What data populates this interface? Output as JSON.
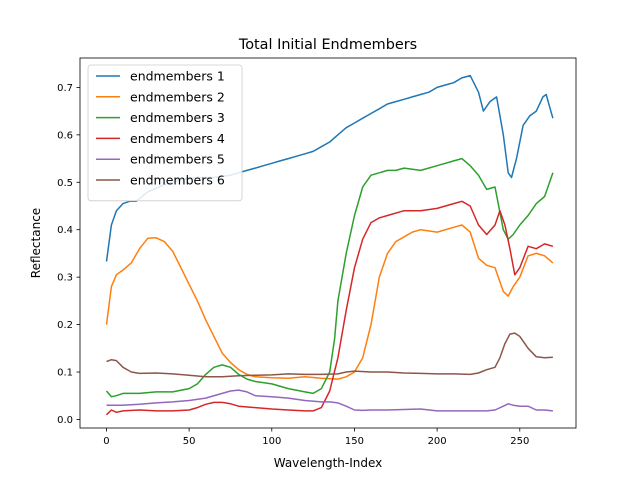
{
  "chart_data": {
    "type": "line",
    "title": "Total Initial Endmembers",
    "xlabel": "Wavelength-Index",
    "ylabel": "Reflectance",
    "xlim": [
      -16,
      284
    ],
    "ylim": [
      -0.018,
      0.762
    ],
    "xticks": [
      0,
      50,
      100,
      150,
      200,
      250
    ],
    "yticks": [
      0.0,
      0.1,
      0.2,
      0.3,
      0.4,
      0.5,
      0.6,
      0.7
    ],
    "ytick_labels": [
      "0.0",
      "0.1",
      "0.2",
      "0.3",
      "0.4",
      "0.5",
      "0.6",
      "0.7"
    ],
    "grid": false,
    "legend_position": "upper-left",
    "series": [
      {
        "name": "endmembers 1",
        "color": "#1f77b4",
        "x": [
          0,
          3,
          6,
          10,
          14,
          18,
          25,
          35,
          45,
          55,
          65,
          75,
          80,
          85,
          90,
          95,
          100,
          105,
          110,
          115,
          120,
          125,
          130,
          135,
          140,
          145,
          150,
          155,
          160,
          165,
          170,
          175,
          180,
          185,
          190,
          195,
          200,
          205,
          210,
          215,
          220,
          225,
          228,
          232,
          236,
          240,
          243,
          245,
          248,
          252,
          256,
          260,
          264,
          266,
          268,
          270
        ],
        "y": [
          0.333,
          0.41,
          0.44,
          0.455,
          0.46,
          0.46,
          0.48,
          0.495,
          0.505,
          0.51,
          0.51,
          0.515,
          0.52,
          0.525,
          0.53,
          0.535,
          0.54,
          0.545,
          0.55,
          0.555,
          0.56,
          0.565,
          0.575,
          0.585,
          0.6,
          0.615,
          0.625,
          0.635,
          0.645,
          0.655,
          0.665,
          0.67,
          0.675,
          0.68,
          0.685,
          0.69,
          0.7,
          0.705,
          0.71,
          0.72,
          0.725,
          0.69,
          0.65,
          0.67,
          0.68,
          0.6,
          0.52,
          0.51,
          0.55,
          0.62,
          0.64,
          0.65,
          0.68,
          0.685,
          0.66,
          0.635
        ]
      },
      {
        "name": "endmembers 2",
        "color": "#ff7f0e",
        "x": [
          0,
          3,
          6,
          10,
          15,
          20,
          25,
          30,
          35,
          40,
          45,
          50,
          55,
          60,
          65,
          70,
          75,
          80,
          85,
          90,
          100,
          110,
          120,
          130,
          140,
          145,
          150,
          155,
          160,
          165,
          170,
          175,
          180,
          185,
          190,
          200,
          210,
          215,
          220,
          225,
          230,
          235,
          240,
          243,
          246,
          250,
          255,
          260,
          265,
          270
        ],
        "y": [
          0.2,
          0.28,
          0.305,
          0.315,
          0.33,
          0.36,
          0.382,
          0.383,
          0.375,
          0.355,
          0.32,
          0.285,
          0.25,
          0.21,
          0.175,
          0.14,
          0.12,
          0.105,
          0.095,
          0.09,
          0.088,
          0.087,
          0.09,
          0.087,
          0.085,
          0.09,
          0.1,
          0.13,
          0.2,
          0.3,
          0.35,
          0.375,
          0.385,
          0.395,
          0.4,
          0.395,
          0.405,
          0.41,
          0.395,
          0.34,
          0.325,
          0.32,
          0.27,
          0.26,
          0.28,
          0.3,
          0.345,
          0.35,
          0.345,
          0.33
        ]
      },
      {
        "name": "endmembers 3",
        "color": "#2ca02c",
        "x": [
          0,
          3,
          6,
          10,
          20,
          30,
          40,
          50,
          55,
          60,
          65,
          70,
          75,
          80,
          85,
          90,
          100,
          110,
          120,
          125,
          130,
          135,
          138,
          140,
          145,
          150,
          155,
          160,
          165,
          170,
          175,
          180,
          190,
          200,
          210,
          215,
          220,
          225,
          230,
          235,
          240,
          243,
          246,
          250,
          255,
          260,
          265,
          270
        ],
        "y": [
          0.06,
          0.048,
          0.05,
          0.055,
          0.055,
          0.058,
          0.058,
          0.065,
          0.075,
          0.095,
          0.11,
          0.115,
          0.11,
          0.095,
          0.085,
          0.08,
          0.075,
          0.065,
          0.058,
          0.055,
          0.065,
          0.1,
          0.17,
          0.25,
          0.35,
          0.43,
          0.49,
          0.515,
          0.52,
          0.525,
          0.525,
          0.53,
          0.525,
          0.535,
          0.545,
          0.55,
          0.535,
          0.515,
          0.485,
          0.49,
          0.4,
          0.38,
          0.39,
          0.41,
          0.43,
          0.455,
          0.47,
          0.52
        ]
      },
      {
        "name": "endmembers 4",
        "color": "#d62728",
        "x": [
          0,
          3,
          6,
          10,
          20,
          30,
          40,
          50,
          55,
          60,
          65,
          70,
          75,
          80,
          90,
          100,
          110,
          120,
          125,
          130,
          135,
          140,
          145,
          150,
          155,
          160,
          165,
          170,
          180,
          190,
          200,
          210,
          215,
          220,
          225,
          230,
          235,
          238,
          241,
          244,
          247,
          250,
          255,
          260,
          265,
          270
        ],
        "y": [
          0.01,
          0.02,
          0.015,
          0.018,
          0.02,
          0.018,
          0.018,
          0.02,
          0.025,
          0.032,
          0.036,
          0.036,
          0.033,
          0.028,
          0.025,
          0.022,
          0.02,
          0.018,
          0.018,
          0.025,
          0.06,
          0.13,
          0.23,
          0.32,
          0.38,
          0.415,
          0.425,
          0.43,
          0.44,
          0.44,
          0.445,
          0.455,
          0.46,
          0.45,
          0.41,
          0.39,
          0.41,
          0.44,
          0.41,
          0.36,
          0.305,
          0.32,
          0.365,
          0.36,
          0.37,
          0.365
        ]
      },
      {
        "name": "endmembers 5",
        "color": "#9467bd",
        "x": [
          0,
          10,
          20,
          30,
          40,
          50,
          60,
          70,
          75,
          80,
          85,
          90,
          100,
          110,
          120,
          130,
          135,
          140,
          145,
          150,
          155,
          160,
          170,
          180,
          190,
          200,
          210,
          220,
          230,
          235,
          240,
          243,
          246,
          250,
          255,
          260,
          265,
          270
        ],
        "y": [
          0.03,
          0.03,
          0.032,
          0.035,
          0.037,
          0.04,
          0.045,
          0.055,
          0.06,
          0.062,
          0.058,
          0.05,
          0.048,
          0.045,
          0.04,
          0.037,
          0.037,
          0.035,
          0.028,
          0.02,
          0.019,
          0.02,
          0.02,
          0.021,
          0.022,
          0.018,
          0.018,
          0.018,
          0.018,
          0.02,
          0.028,
          0.033,
          0.03,
          0.028,
          0.028,
          0.02,
          0.02,
          0.018
        ]
      },
      {
        "name": "endmembers 6",
        "color": "#8c564b",
        "x": [
          0,
          3,
          6,
          10,
          15,
          20,
          30,
          40,
          50,
          60,
          70,
          80,
          90,
          100,
          110,
          120,
          130,
          140,
          145,
          150,
          160,
          170,
          180,
          190,
          200,
          210,
          220,
          225,
          230,
          235,
          238,
          241,
          244,
          247,
          250,
          255,
          260,
          265,
          270
        ],
        "y": [
          0.122,
          0.126,
          0.124,
          0.11,
          0.1,
          0.097,
          0.098,
          0.096,
          0.093,
          0.09,
          0.09,
          0.092,
          0.093,
          0.094,
          0.096,
          0.095,
          0.095,
          0.096,
          0.1,
          0.102,
          0.1,
          0.1,
          0.098,
          0.097,
          0.096,
          0.096,
          0.095,
          0.098,
          0.105,
          0.11,
          0.13,
          0.16,
          0.18,
          0.182,
          0.175,
          0.15,
          0.132,
          0.13,
          0.131
        ]
      }
    ]
  }
}
